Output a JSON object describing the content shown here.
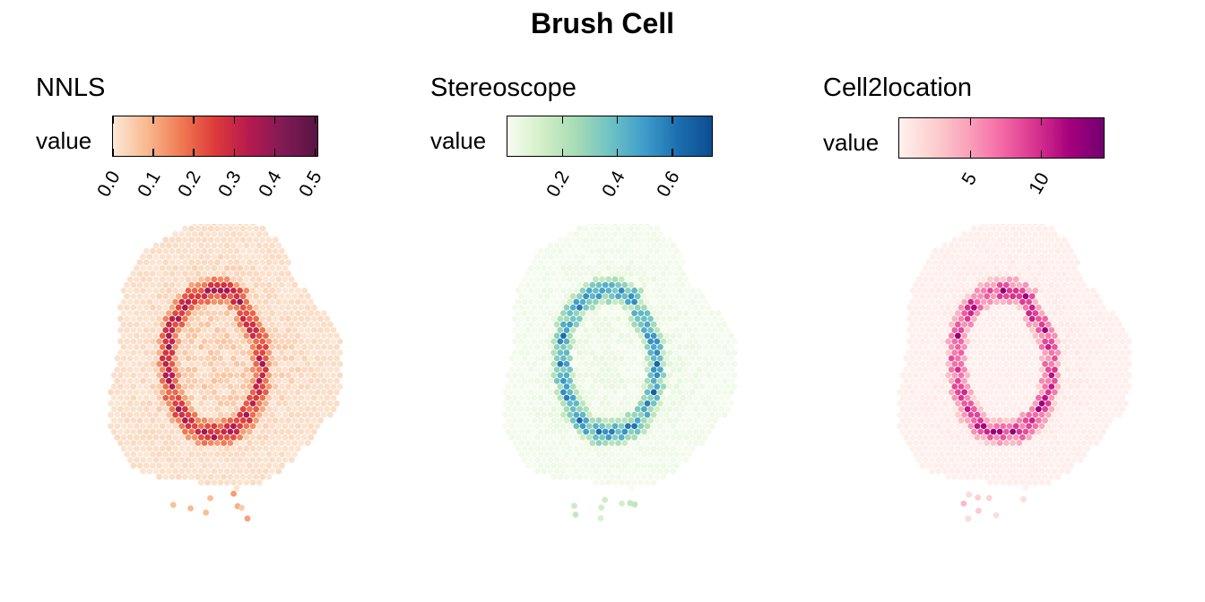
{
  "figure_title": "Brush Cell",
  "chart_data": [
    {
      "type": "heatmap",
      "title": "NNLS",
      "legend_title": "value",
      "colorscale": [
        "#fce7d6",
        "#f8b98f",
        "#f07a52",
        "#dd3a3a",
        "#b51a4f",
        "#801a55",
        "#581443"
      ],
      "range": [
        0.0,
        0.51
      ],
      "ticks": [
        0.0,
        0.1,
        0.2,
        0.3,
        0.4,
        0.5
      ],
      "tick_labels": [
        "0.0",
        "0.1",
        "0.2",
        "0.3",
        "0.4",
        "0.5"
      ],
      "pattern": {
        "ring_max": 0.45,
        "tissue_background": 0.07,
        "outer_max": 0.12
      }
    },
    {
      "type": "heatmap",
      "title": "Stereoscope",
      "legend_title": "value",
      "colorscale": [
        "#f7fcf0",
        "#d3efc8",
        "#a8dcb5",
        "#6fc3c4",
        "#3f9dcb",
        "#1c6faf",
        "#0b4d91"
      ],
      "range": [
        0.0,
        0.75
      ],
      "ticks": [
        0.2,
        0.4,
        0.6
      ],
      "tick_labels": [
        "0.2",
        "0.4",
        "0.6"
      ],
      "pattern": {
        "ring_max": 0.72,
        "tissue_background": 0.05,
        "outer_max": 0.12
      }
    },
    {
      "type": "heatmap",
      "title": "Cell2location",
      "legend_title": "value",
      "colorscale": [
        "#fff1ee",
        "#fcd0cf",
        "#f9a3bb",
        "#f46aa6",
        "#d9338f",
        "#a6007d",
        "#720070"
      ],
      "range": [
        0.0,
        14.5
      ],
      "ticks": [
        5,
        10
      ],
      "tick_labels": [
        "5",
        "10"
      ],
      "pattern": {
        "ring_max": 14.0,
        "tissue_background": 0.3,
        "outer_max": 1.5
      }
    }
  ]
}
